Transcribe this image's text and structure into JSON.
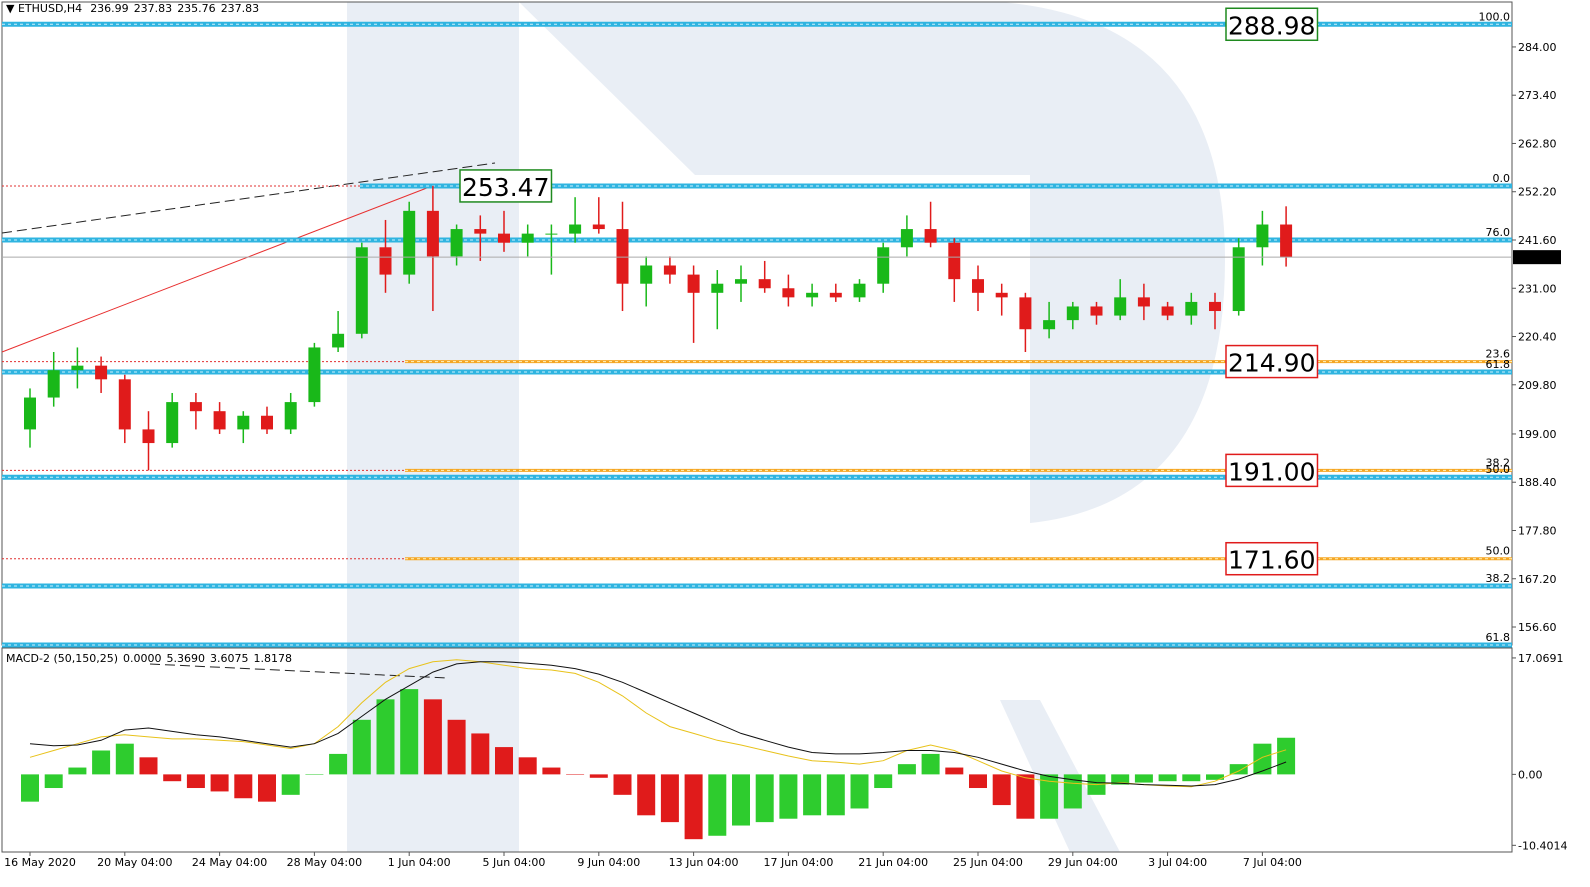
{
  "header": {
    "symbol": "ETHUSD,H4",
    "last_bar": [
      236.99,
      237.83,
      235.76,
      237.83
    ]
  },
  "chart_data": [
    {
      "type": "candlestick",
      "categories": [
        "16 May 2020",
        null,
        null,
        null,
        "20 May 04:00",
        null,
        null,
        null,
        "24 May 04:00",
        null,
        null,
        null,
        "28 May 04:00",
        null,
        null,
        null,
        "1 Jun 04:00",
        null,
        null,
        null,
        "5 Jun 04:00",
        null,
        null,
        null,
        "9 Jun 04:00",
        null,
        null,
        null,
        "13 Jun 04:00",
        null,
        null,
        null,
        "17 Jun 04:00",
        null,
        null,
        null,
        "21 Jun 04:00",
        null,
        null,
        null,
        "25 Jun 04:00",
        null,
        null,
        null,
        "29 Jun 04:00",
        null,
        null,
        null,
        "3 Jul 04:00",
        null,
        null,
        null,
        "7 Jul 04:00",
        null
      ],
      "open": [
        200,
        207,
        213,
        214,
        211,
        200,
        197,
        206,
        204,
        200,
        203,
        200,
        206,
        218,
        221,
        240,
        234,
        248,
        238,
        244,
        243,
        241,
        243,
        243,
        245,
        244,
        232,
        236,
        234,
        230,
        232,
        233,
        231,
        229,
        230,
        229,
        232,
        240,
        244,
        241,
        233,
        230,
        229,
        222,
        224,
        227,
        225,
        229,
        227,
        225,
        228,
        226,
        240,
        245
      ],
      "high": [
        209,
        217,
        218,
        216,
        212,
        204,
        208,
        208,
        206,
        204,
        205,
        208,
        219,
        226,
        241,
        246,
        250,
        253.5,
        245,
        247,
        248,
        245,
        245,
        251,
        251,
        250,
        238,
        238,
        236,
        235,
        236,
        237,
        234,
        232,
        232,
        233,
        241,
        247,
        250,
        242,
        236,
        232,
        230,
        228,
        228,
        228,
        233,
        232,
        228,
        230,
        230,
        242,
        248,
        249
      ],
      "low": [
        196,
        205,
        209,
        208,
        197,
        191,
        196,
        200,
        199,
        197,
        199,
        199,
        205,
        217,
        220,
        230,
        232,
        226,
        236,
        237,
        239,
        238,
        234,
        241,
        243,
        226,
        227,
        232,
        219,
        222,
        228,
        230,
        227,
        227,
        228,
        228,
        230,
        238,
        240,
        228,
        226,
        225,
        217,
        220,
        222,
        223,
        224,
        224,
        224,
        223,
        222,
        225,
        236,
        235.76
      ],
      "close": [
        207,
        213,
        214,
        211,
        200,
        197,
        206,
        204,
        200,
        203,
        200,
        206,
        218,
        221,
        240,
        234,
        248,
        238,
        244,
        243,
        241,
        243,
        243,
        245,
        244,
        232,
        236,
        234,
        230,
        232,
        233,
        231,
        229,
        230,
        229,
        232,
        240,
        244,
        241,
        233,
        230,
        229,
        222,
        224,
        227,
        225,
        229,
        227,
        225,
        228,
        226,
        240,
        245,
        237.83
      ],
      "up_color": "#19b819",
      "down_color": "#e01b1b",
      "ylim": [
        152.65,
        293.87
      ],
      "yticks": [
        {
          "value": 284,
          "label": "284.00"
        },
        {
          "value": 273.4,
          "label": "273.40"
        },
        {
          "value": 262.8,
          "label": "262.80"
        },
        {
          "value": 252.2,
          "label": "252.20"
        },
        {
          "value": 241.6,
          "label": "241.60"
        },
        {
          "value": 231,
          "label": "231.00"
        },
        {
          "value": 220.4,
          "label": "220.40"
        },
        {
          "value": 209.8,
          "label": "209.80"
        },
        {
          "value": 199,
          "label": "199.00"
        },
        {
          "value": 188.4,
          "label": "188.40"
        },
        {
          "value": 177.8,
          "label": "177.80"
        },
        {
          "value": 167.2,
          "label": "167.20"
        },
        {
          "value": 156.6,
          "label": "156.60"
        }
      ],
      "fib_levels": [
        {
          "label": "100.0",
          "value": 288.98,
          "kind": "blue",
          "color": "#7f9f3f"
        },
        {
          "label": "0.0",
          "value": 253.47,
          "kind": "blue",
          "color": "#d43c3c"
        },
        {
          "label": "76.0",
          "value": 241.6,
          "kind": "blue",
          "color": "#3c9c3c"
        },
        {
          "label": "23.6",
          "value": 214.9,
          "kind": "orange",
          "color": "#d43c3c"
        },
        {
          "label": "61.8",
          "value": 212.6,
          "kind": "blue",
          "color": "#3c9c3c"
        },
        {
          "label": "38.2",
          "value": 191.0,
          "kind": "orange",
          "color": "#d43c3c"
        },
        {
          "label": "50.0",
          "value": 189.5,
          "kind": "blue",
          "color": "#3c9c3c"
        },
        {
          "label": "50.0",
          "value": 171.6,
          "kind": "orange",
          "color": "#d43c3c"
        },
        {
          "label": "38.2",
          "value": 165.6,
          "kind": "blue",
          "color": "#3c9c3c"
        },
        {
          "label": "61.8",
          "value": 152.65,
          "kind": "blue",
          "color": "#d43c3c"
        }
      ],
      "targets": [
        {
          "value": 288.98,
          "color": "#1f8a1f"
        },
        {
          "value": 253.47,
          "color": "#1f8a1f"
        },
        {
          "value": {
            "value": 214.9,
            "label": "214.90"
          },
          "color": "#e01b1b"
        },
        {
          "value": {
            "value": 191,
            "label": "191.00"
          },
          "color": "#e01b1b"
        },
        {
          "value": {
            "value": 171.6,
            "label": "171.60"
          },
          "color": "#e01b1b"
        }
      ]
    },
    {
      "type": "macd",
      "title": "MACD-2 (50,150,25)",
      "indicator_values": [
        {
          "value": 0,
          "label": "0.0000"
        },
        {
          "value": 5.369,
          "label": "5.3690"
        },
        3.6075,
        1.8178
      ],
      "values": [
        -4,
        -2,
        1,
        3.5,
        4.5,
        2.5,
        -1,
        -2,
        -2.5,
        -3.5,
        -4,
        -3,
        0,
        3,
        8,
        11,
        12.5,
        11,
        8,
        6,
        4,
        2.5,
        1,
        0,
        -0.5,
        -3,
        -6,
        -7,
        -9.5,
        -9,
        -7.5,
        -7,
        -6.5,
        -6,
        -6,
        -5,
        -2,
        1.5,
        3,
        1,
        -2,
        -4.5,
        -6.5,
        -6.5,
        -5,
        -3,
        -1.5,
        -1.2,
        -1,
        -1,
        -0.8,
        1.5,
        4.5,
        5.369
      ],
      "up_color": "#2ecc2e",
      "down_color": "#e01b1b",
      "series": [
        {
          "color": "#e8c21a",
          "values": [
            2.5,
            3.5,
            4.5,
            5.5,
            5.8,
            5.5,
            5.2,
            5.2,
            5,
            4.8,
            4.3,
            3.8,
            4.5,
            7,
            10.5,
            13.5,
            15.5,
            16.5,
            16.8,
            16.5,
            16,
            15.5,
            15.3,
            14.8,
            13.5,
            11.5,
            9,
            7,
            6,
            5,
            4.3,
            3.5,
            2.7,
            2,
            1.8,
            1.5,
            2,
            3.5,
            4.3,
            3.5,
            2,
            0.5,
            -0.5,
            -1,
            -1.3,
            -1.5,
            -1.2,
            -1.5,
            -1.7,
            -1.8,
            -1,
            0.5,
            2.5,
            3.6075
          ]
        },
        {
          "color": "#111111",
          "values": [
            4.5,
            4.2,
            4.3,
            5,
            6.5,
            6.8,
            6.3,
            5.8,
            5.5,
            5,
            4.5,
            4,
            4.5,
            6,
            8.5,
            11,
            13,
            15,
            16.2,
            16.5,
            16.5,
            16.3,
            16,
            15.5,
            14.7,
            13.5,
            12,
            10.5,
            9,
            7.5,
            6,
            5,
            4,
            3.2,
            3,
            3,
            3.2,
            3.5,
            3.5,
            3.2,
            2.5,
            1.5,
            0.5,
            -0.3,
            -0.8,
            -1.2,
            -1.3,
            -1.5,
            -1.6,
            -1.7,
            -1.5,
            -0.7,
            0.5,
            1.8178
          ]
        }
      ],
      "ylim": [
        -11.38,
        18.38
      ],
      "yticks": [
        17.0691,
        {
          "value": 0,
          "label": "0.00"
        },
        -10.4014
      ]
    }
  ]
}
